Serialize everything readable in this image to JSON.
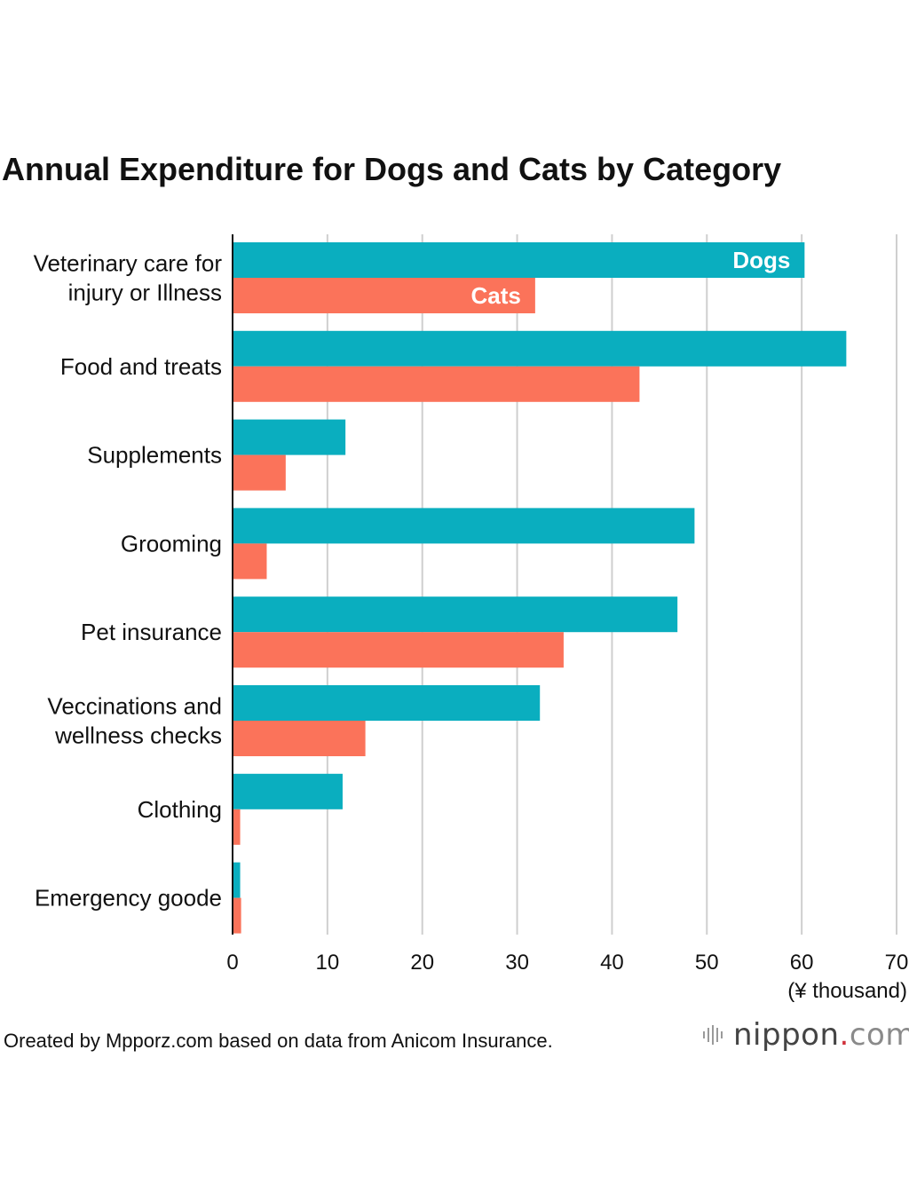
{
  "chart_data": {
    "type": "bar",
    "orientation": "horizontal",
    "title": "Annual Expenditure for Dogs and Cats by Category",
    "xlabel": "(¥ thousand)",
    "ylabel": "",
    "xlim": [
      0,
      70
    ],
    "x_ticks": [
      0,
      10,
      20,
      30,
      40,
      50,
      60,
      70
    ],
    "grid": true,
    "categories": [
      [
        "Veterinary care for",
        "injury or Illness"
      ],
      [
        "Food and treats"
      ],
      [
        "Supplements"
      ],
      [
        "Grooming"
      ],
      [
        "Pet insurance"
      ],
      [
        "Veccinations and",
        "wellness checks"
      ],
      [
        "Clothing"
      ],
      [
        "Emergency goode"
      ]
    ],
    "series": [
      {
        "name": "Dogs",
        "color": "#0aaebf",
        "values": [
          60.3,
          64.7,
          11.9,
          48.7,
          46.9,
          32.4,
          11.6,
          0.8
        ]
      },
      {
        "name": "Cats",
        "color": "#fb735a",
        "values": [
          31.9,
          42.9,
          5.6,
          3.6,
          34.9,
          14.0,
          0.8,
          0.9
        ]
      }
    ],
    "legend": "inline-on-first-bars"
  },
  "source": "Oreated by Mpporz.com based on data from  Anicom Insurance.",
  "logo": {
    "name": "nippon",
    "dot": ".",
    "suffix": "com"
  }
}
